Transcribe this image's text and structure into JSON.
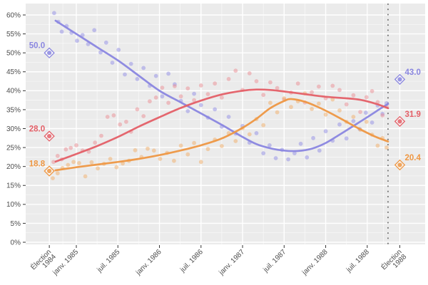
{
  "chart_data": {
    "type": "scatter",
    "subtype": "polls-with-smoothed-trend-lines",
    "title": "",
    "x_axis": {
      "unit": "months relative to janv. 1985",
      "ticks": [
        {
          "m": -3.9,
          "label": "Élection\n1984"
        },
        {
          "m": 0,
          "label": "janv. 1985"
        },
        {
          "m": 6,
          "label": "juil. 1985"
        },
        {
          "m": 12,
          "label": "janv. 1986"
        },
        {
          "m": 18,
          "label": "juil. 1986"
        },
        {
          "m": 24,
          "label": "janv. 1987"
        },
        {
          "m": 30,
          "label": "juil. 1987"
        },
        {
          "m": 36,
          "label": "janv. 1988"
        },
        {
          "m": 42,
          "label": "juil. 1988"
        },
        {
          "m": 46.7,
          "label": "Élection\n1988"
        }
      ]
    },
    "y_axis": {
      "min": 0,
      "max": 60,
      "step": 5,
      "minor_step_offset": 2.5,
      "suffix": "%"
    },
    "campaign_vline_m": 45,
    "series": [
      {
        "id": "violet",
        "line_color": "#8a86e0",
        "point_color": "#928ee6",
        "election_1984": {
          "m": -3.9,
          "value": 50.0,
          "label": "50.0"
        },
        "election_1988": {
          "m": 46.7,
          "value": 43.0,
          "label": "43.0"
        },
        "trend": [
          [
            -3,
            58.5
          ],
          [
            0,
            55
          ],
          [
            3,
            51.5
          ],
          [
            6,
            48
          ],
          [
            9,
            44
          ],
          [
            12,
            40
          ],
          [
            15,
            37
          ],
          [
            18,
            34
          ],
          [
            21,
            31
          ],
          [
            24,
            27.8
          ],
          [
            26,
            25.9
          ],
          [
            28,
            24.8
          ],
          [
            30,
            24.2
          ],
          [
            32,
            24.1
          ],
          [
            34,
            24.7
          ],
          [
            36,
            26.2
          ],
          [
            38,
            28.4
          ],
          [
            40,
            30.7
          ],
          [
            42,
            33
          ],
          [
            44,
            35.4
          ],
          [
            45,
            36.5
          ]
        ],
        "polls": [
          [
            -3.2,
            60.5
          ],
          [
            -2.6,
            58.2
          ],
          [
            -2.1,
            55.6
          ],
          [
            -1.4,
            57.1
          ],
          [
            -0.7,
            55.3
          ],
          [
            0.1,
            53.2
          ],
          [
            0.9,
            54.7
          ],
          [
            1.7,
            52.3
          ],
          [
            2.6,
            56
          ],
          [
            3.5,
            50.1
          ],
          [
            4.3,
            52.7
          ],
          [
            5.2,
            47.4
          ],
          [
            6.1,
            50.8
          ],
          [
            7,
            44.3
          ],
          [
            7.9,
            47.1
          ],
          [
            8.8,
            43.1
          ],
          [
            9.7,
            46
          ],
          [
            10.6,
            41.3
          ],
          [
            11.5,
            43.9
          ],
          [
            12.4,
            38.5
          ],
          [
            13.3,
            44.5
          ],
          [
            14.2,
            41.7
          ],
          [
            15.1,
            37.3
          ],
          [
            16.1,
            34.6
          ],
          [
            17,
            39.2
          ],
          [
            18,
            36.2
          ],
          [
            19,
            32.9
          ],
          [
            20,
            35.1
          ],
          [
            21,
            30.5
          ],
          [
            22,
            33.1
          ],
          [
            23,
            28.7
          ],
          [
            24,
            30.7
          ],
          [
            25,
            26.3
          ],
          [
            26,
            28.8
          ],
          [
            27,
            23.5
          ],
          [
            27.9,
            25.6
          ],
          [
            28.8,
            22.2
          ],
          [
            29.7,
            24.4
          ],
          [
            30.6,
            21.9
          ],
          [
            31.5,
            23.5
          ],
          [
            32.4,
            26
          ],
          [
            33.3,
            22.4
          ],
          [
            34.2,
            27.5
          ],
          [
            35.1,
            24.2
          ],
          [
            36,
            29.3
          ],
          [
            37,
            26.8
          ],
          [
            38,
            31.1
          ],
          [
            39,
            27.4
          ],
          [
            40,
            32
          ],
          [
            40.9,
            29.9
          ],
          [
            41.8,
            34.2
          ],
          [
            42.7,
            31.6
          ],
          [
            43.5,
            36.1
          ],
          [
            44.2,
            33.9
          ],
          [
            44.8,
            36.7
          ]
        ]
      },
      {
        "id": "red",
        "line_color": "#e45f67",
        "point_color": "#ec8d94",
        "election_1984": {
          "m": -3.9,
          "value": 28.0,
          "label": "28.0"
        },
        "election_1988": {
          "m": 46.7,
          "value": 31.9,
          "label": "31.9"
        },
        "trend": [
          [
            -3,
            21.3
          ],
          [
            0,
            23.3
          ],
          [
            3,
            25.4
          ],
          [
            6,
            27.8
          ],
          [
            9,
            30.5
          ],
          [
            12,
            33
          ],
          [
            15,
            35.4
          ],
          [
            18,
            37.4
          ],
          [
            21,
            39
          ],
          [
            24,
            40
          ],
          [
            26,
            40.3
          ],
          [
            28,
            40.2
          ],
          [
            30,
            39.8
          ],
          [
            33,
            39.1
          ],
          [
            36,
            38.4
          ],
          [
            39,
            38
          ],
          [
            41,
            37.6
          ],
          [
            43,
            36.7
          ],
          [
            44,
            36.1
          ],
          [
            45,
            35.4
          ]
        ],
        "polls": [
          [
            -3.3,
            21.2
          ],
          [
            -2.7,
            22.8
          ],
          [
            -2.1,
            21.9
          ],
          [
            -1.5,
            24.5
          ],
          [
            -0.8,
            24.9
          ],
          [
            0,
            25.6
          ],
          [
            0.9,
            24.2
          ],
          [
            1.8,
            23.9
          ],
          [
            2.7,
            26.3
          ],
          [
            3.6,
            28.1
          ],
          [
            4.5,
            33.1
          ],
          [
            5.4,
            33.5
          ],
          [
            6.3,
            31.1
          ],
          [
            7.2,
            31.8
          ],
          [
            7.9,
            29.2
          ],
          [
            8.8,
            35.1
          ],
          [
            9.7,
            33.3
          ],
          [
            10.6,
            37.2
          ],
          [
            11.5,
            38.2
          ],
          [
            12.4,
            40.8
          ],
          [
            13.3,
            36.8
          ],
          [
            14.2,
            41.2
          ],
          [
            15.1,
            38.5
          ],
          [
            16.1,
            40.6
          ],
          [
            17,
            37.5
          ],
          [
            18,
            41.4
          ],
          [
            19,
            39.1
          ],
          [
            20,
            41.9
          ],
          [
            21,
            38.2
          ],
          [
            22,
            43.1
          ],
          [
            23,
            45.3
          ],
          [
            24,
            40.2
          ],
          [
            25,
            44.6
          ],
          [
            26,
            42.5
          ],
          [
            27,
            38.9
          ],
          [
            28,
            42.2
          ],
          [
            29,
            40.7
          ],
          [
            30,
            37.7
          ],
          [
            31,
            39.5
          ],
          [
            32,
            41.9
          ],
          [
            33,
            36.9
          ],
          [
            34,
            39.6
          ],
          [
            35,
            41.1
          ],
          [
            36,
            38
          ],
          [
            37,
            41.3
          ],
          [
            38,
            40.2
          ],
          [
            39,
            36.4
          ],
          [
            40,
            38.8
          ],
          [
            41,
            34.4
          ],
          [
            41.9,
            38.3
          ],
          [
            42.7,
            39.9
          ],
          [
            43.5,
            37
          ],
          [
            44.2,
            33.5
          ],
          [
            44.8,
            35.8
          ]
        ]
      },
      {
        "id": "orange",
        "line_color": "#ee9743",
        "point_color": "#f2ad68",
        "election_1984": {
          "m": -3.9,
          "value": 18.8,
          "label": "18.8"
        },
        "election_1988": {
          "m": 46.7,
          "value": 20.4,
          "label": "20.4"
        },
        "trend": [
          [
            -3,
            19
          ],
          [
            0,
            19.8
          ],
          [
            3,
            20.5
          ],
          [
            6,
            21.2
          ],
          [
            9,
            22
          ],
          [
            12,
            23
          ],
          [
            15,
            24.2
          ],
          [
            18,
            25.6
          ],
          [
            21,
            27.4
          ],
          [
            24,
            30.2
          ],
          [
            26,
            32.6
          ],
          [
            28,
            35.4
          ],
          [
            30,
            37.3
          ],
          [
            31,
            37.8
          ],
          [
            33,
            37.1
          ],
          [
            35,
            35.6
          ],
          [
            37,
            33.8
          ],
          [
            39,
            31.8
          ],
          [
            41,
            29.8
          ],
          [
            43,
            28
          ],
          [
            45,
            26.6
          ]
        ],
        "polls": [
          [
            -3.4,
            16.9
          ],
          [
            -2.7,
            18.2
          ],
          [
            -2,
            19.6
          ],
          [
            -1.2,
            20.4
          ],
          [
            -0.4,
            21.2
          ],
          [
            0.4,
            20.9
          ],
          [
            1.3,
            17.4
          ],
          [
            2.2,
            21.1
          ],
          [
            3.1,
            19.5
          ],
          [
            4,
            20.7
          ],
          [
            4.9,
            22
          ],
          [
            5.8,
            19.8
          ],
          [
            6.7,
            20.8
          ],
          [
            7.6,
            21.5
          ],
          [
            8.5,
            24.3
          ],
          [
            9.4,
            22.5
          ],
          [
            10.3,
            24.7
          ],
          [
            11.2,
            24.2
          ],
          [
            12.1,
            22
          ],
          [
            13.1,
            23.6
          ],
          [
            14.1,
            21.5
          ],
          [
            15.1,
            25.5
          ],
          [
            16.1,
            23.2
          ],
          [
            17,
            26.2
          ],
          [
            18,
            21.2
          ],
          [
            19,
            24.6
          ],
          [
            20,
            27.1
          ],
          [
            21,
            25.4
          ],
          [
            22,
            28.8
          ],
          [
            23,
            26.7
          ],
          [
            24,
            30.1
          ],
          [
            25,
            28.5
          ],
          [
            26,
            32.5
          ],
          [
            27,
            30.9
          ],
          [
            28,
            36.8
          ],
          [
            29,
            34.3
          ],
          [
            30,
            38
          ],
          [
            31,
            35.7
          ],
          [
            32,
            37.2
          ],
          [
            33,
            39.3
          ],
          [
            34,
            35.2
          ],
          [
            35,
            36.6
          ],
          [
            36,
            33.7
          ],
          [
            37,
            37.7
          ],
          [
            38,
            34.8
          ],
          [
            39,
            31.8
          ],
          [
            40,
            33.1
          ],
          [
            41,
            29.7
          ],
          [
            41.9,
            31.8
          ],
          [
            42.7,
            28.4
          ],
          [
            43.5,
            25.5
          ],
          [
            44.2,
            27.5
          ],
          [
            44.8,
            25
          ]
        ]
      }
    ],
    "layout": {
      "plot_bg": "#ebebeb",
      "grid_color": "#ffffff",
      "axis_text_color": "#4d4d4d",
      "tick_color": "#333333",
      "vline_color": "#595959",
      "legend": "none"
    }
  }
}
